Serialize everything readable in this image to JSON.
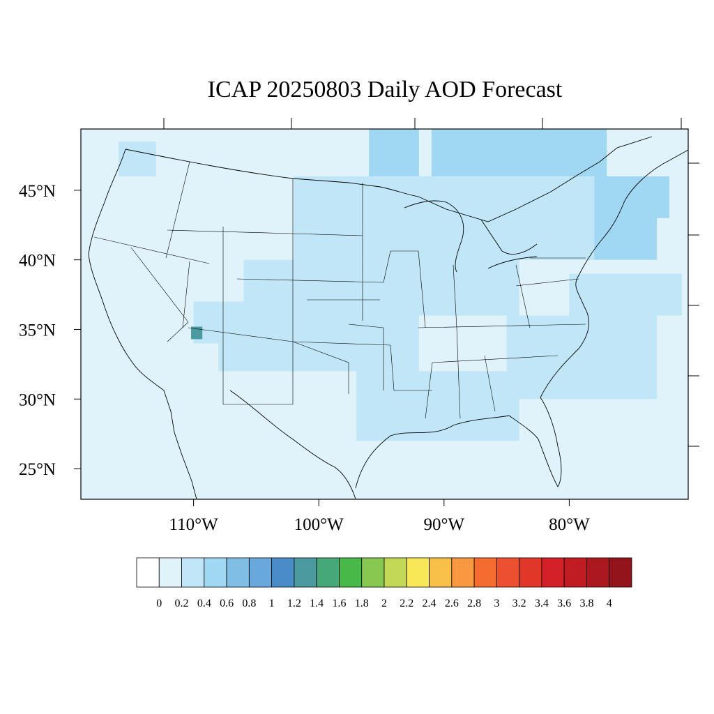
{
  "title": "ICAP 20250803 Daily AOD Forecast",
  "map": {
    "lon_range": [
      -119,
      -70.5
    ],
    "lat_range": [
      22.8,
      49.4
    ],
    "lat_ticks": [
      {
        "value": 45,
        "label": "45°N"
      },
      {
        "value": 40,
        "label": "40°N"
      },
      {
        "value": 35,
        "label": "35°N"
      },
      {
        "value": 30,
        "label": "30°N"
      },
      {
        "value": 25,
        "label": "25°N"
      }
    ],
    "lon_ticks": [
      {
        "value": -110,
        "label": "110°W"
      },
      {
        "value": -100,
        "label": "100°W"
      },
      {
        "value": -90,
        "label": "90°W"
      },
      {
        "value": -80,
        "label": "80°W"
      }
    ],
    "ocean_color": "#e0f3fb",
    "land_base_color": "#e0f3fb"
  },
  "colorbar": {
    "colors": [
      "#ffffff",
      "#e0f3fb",
      "#c0e6f7",
      "#a0d8f3",
      "#80bee6",
      "#68a8dc",
      "#4a8cc8",
      "#4a9aa0",
      "#46a878",
      "#48b848",
      "#88c850",
      "#c4d858",
      "#f8e858",
      "#f8c048",
      "#f89840",
      "#f46c30",
      "#ec5030",
      "#e03828",
      "#d42028",
      "#c01c24",
      "#ac1820",
      "#94141c"
    ],
    "labels": [
      "0",
      "0.2",
      "0.4",
      "0.6",
      "0.8",
      "1",
      "1.2",
      "1.4",
      "1.6",
      "1.8",
      "2",
      "2.2",
      "2.4",
      "2.6",
      "2.8",
      "3",
      "3.2",
      "3.4",
      "3.6",
      "3.8",
      "4"
    ]
  },
  "aod_regions": [
    {
      "level": 0.5,
      "lon0": -91,
      "lon1": -77,
      "lat0": 45.5,
      "lat1": 49.4
    },
    {
      "level": 0.5,
      "lon0": -88,
      "lon1": -72,
      "lat0": 43,
      "lat1": 46
    },
    {
      "level": 0.4,
      "lon0": -96,
      "lon1": -92,
      "lat0": 44,
      "lat1": 49.4
    },
    {
      "level": 0.4,
      "lon0": -84,
      "lon1": -73,
      "lat0": 40,
      "lat1": 45
    },
    {
      "level": 0.3,
      "lon0": -102,
      "lon1": -78,
      "lat0": 40,
      "lat1": 46
    },
    {
      "level": 0.3,
      "lon0": -106,
      "lon1": -95,
      "lat0": 36,
      "lat1": 40
    },
    {
      "level": 0.2,
      "lon0": -108,
      "lon1": -92,
      "lat0": 32,
      "lat1": 36
    },
    {
      "level": 0.2,
      "lon0": -97,
      "lon1": -84,
      "lat0": 27,
      "lat1": 32
    },
    {
      "level": 0.2,
      "lon0": -85,
      "lon1": -73,
      "lat0": 30,
      "lat1": 36
    },
    {
      "level": 0.2,
      "lon0": -80,
      "lon1": -71,
      "lat0": 36,
      "lat1": 39
    },
    {
      "level": 0.2,
      "lon0": -116,
      "lon1": -113,
      "lat0": 46,
      "lat1": 48.5
    },
    {
      "level": 0.2,
      "lon0": -98,
      "lon1": -84,
      "lat0": 36,
      "lat1": 40
    },
    {
      "level": 0.2,
      "lon0": -110,
      "lon1": -106,
      "lat0": 34,
      "lat1": 37
    },
    {
      "level": 1.3,
      "lon0": -110.2,
      "lon1": -109.3,
      "lat0": 34.3,
      "lat1": 35.2
    }
  ]
}
